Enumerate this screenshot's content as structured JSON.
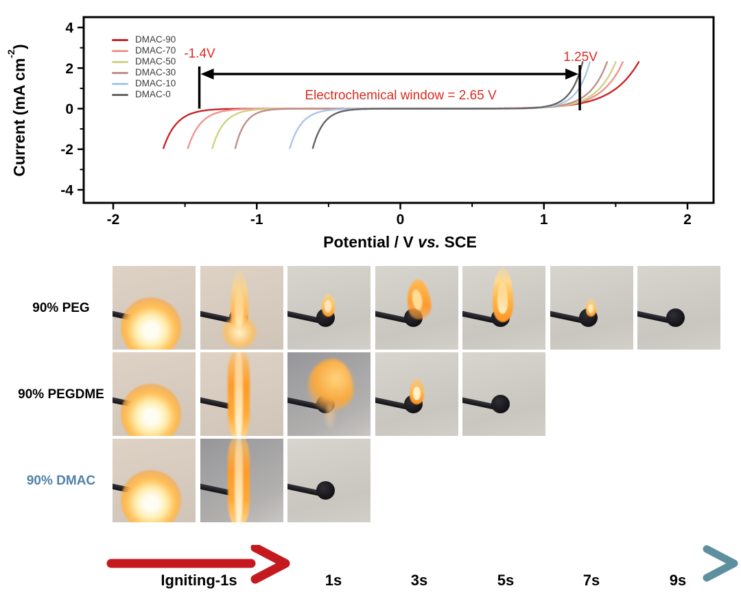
{
  "chart_data": {
    "type": "line",
    "title": "",
    "xlabel": "Potential / V vs. SCE",
    "ylabel": "Current (mA cm-2)",
    "xlabel_parts": {
      "pre": "Potential / V ",
      "italic": "vs.",
      "post": " SCE"
    },
    "ylabel_parts": {
      "pre": "Current (mA cm",
      "sup": "-2",
      "post": ")"
    },
    "xlim": [
      -2.2,
      2.2
    ],
    "ylim": [
      -4.5,
      4.5
    ],
    "x_ticks": [
      -2,
      -1,
      0,
      1,
      2
    ],
    "x_minor_ticks": [
      -1.5,
      -0.5,
      0.5,
      1.5
    ],
    "y_ticks": [
      4,
      2,
      0,
      -2,
      -4
    ],
    "y_minor_ticks": [
      3,
      1,
      -1,
      -3
    ],
    "grid": "off",
    "legend_position": "upper-left-inside",
    "cathodic_limit_current": -1.95,
    "anodic_limit_current": 2.3,
    "series": [
      {
        "name": "DMAC-90",
        "color": "#c92226",
        "cathodic_end": -1.65,
        "cathodic_onset": -1.37,
        "anodic_onset": 1.1,
        "anodic_end": 1.66
      },
      {
        "name": "DMAC-70",
        "color": "#f0938d",
        "cathodic_end": -1.48,
        "cathodic_onset": -1.21,
        "anodic_onset": 1.1,
        "anodic_end": 1.55
      },
      {
        "name": "DMAC-50",
        "color": "#cfd286",
        "cathodic_end": -1.31,
        "cathodic_onset": -1.06,
        "anodic_onset": 1.1,
        "anodic_end": 1.5
      },
      {
        "name": "DMAC-30",
        "color": "#bf8e89",
        "cathodic_end": -1.15,
        "cathodic_onset": -0.94,
        "anodic_onset": 1.08,
        "anodic_end": 1.44
      },
      {
        "name": "DMAC-10",
        "color": "#a9c6e6",
        "cathodic_end": -0.77,
        "cathodic_onset": -0.52,
        "anodic_onset": 1.05,
        "anodic_end": 1.32
      },
      {
        "name": "DMAC-0",
        "color": "#636363",
        "cathodic_end": -0.61,
        "cathodic_onset": -0.38,
        "anodic_onset": 1.02,
        "anodic_end": 1.27
      }
    ],
    "annotations": {
      "left_label": "-1.4V",
      "right_label": "1.25V",
      "window_label": "Electrochemical window = 2.65 V",
      "left_potential": -1.4,
      "right_potential": 1.25,
      "text_color": "#d92b21"
    }
  },
  "flame_test": {
    "rows": [
      {
        "label": "90% PEG",
        "label_color": "#000000",
        "cells": [
          {
            "bg": "warm",
            "flame": "glow"
          },
          {
            "bg": "warm",
            "flame": "tall"
          },
          {
            "bg": "plain",
            "flame": "small"
          },
          {
            "bg": "plain",
            "flame": "curved"
          },
          {
            "bg": "plain",
            "flame": "bright"
          },
          {
            "bg": "plain",
            "flame": "tiny"
          },
          {
            "bg": "plain",
            "flame": "none"
          }
        ]
      },
      {
        "label": "90% PEGDME",
        "label_color": "#000000",
        "cells": [
          {
            "bg": "warm",
            "flame": "glow"
          },
          {
            "bg": "warm",
            "flame": "jet"
          },
          {
            "bg": "gray",
            "flame": "wispy"
          },
          {
            "bg": "plain",
            "flame": "candle"
          },
          {
            "bg": "plain",
            "flame": "none"
          }
        ]
      },
      {
        "label": "90% DMAC",
        "label_color": "#4f81a8",
        "cells": [
          {
            "bg": "warm",
            "flame": "glow"
          },
          {
            "bg": "gray",
            "flame": "jet"
          },
          {
            "bg": "plain",
            "flame": "none"
          }
        ]
      }
    ]
  },
  "timeline": {
    "igniting_label": "Igniting-1s",
    "time_labels": [
      "1s",
      "3s",
      "5s",
      "7s",
      "9s"
    ],
    "red": "#c41a1f",
    "gradient": [
      "#c8201a",
      "#e06a10",
      "#e8bb1e",
      "#a8a85a",
      "#5d8f9e"
    ],
    "arrowhead_color": "#5d8f9e"
  }
}
